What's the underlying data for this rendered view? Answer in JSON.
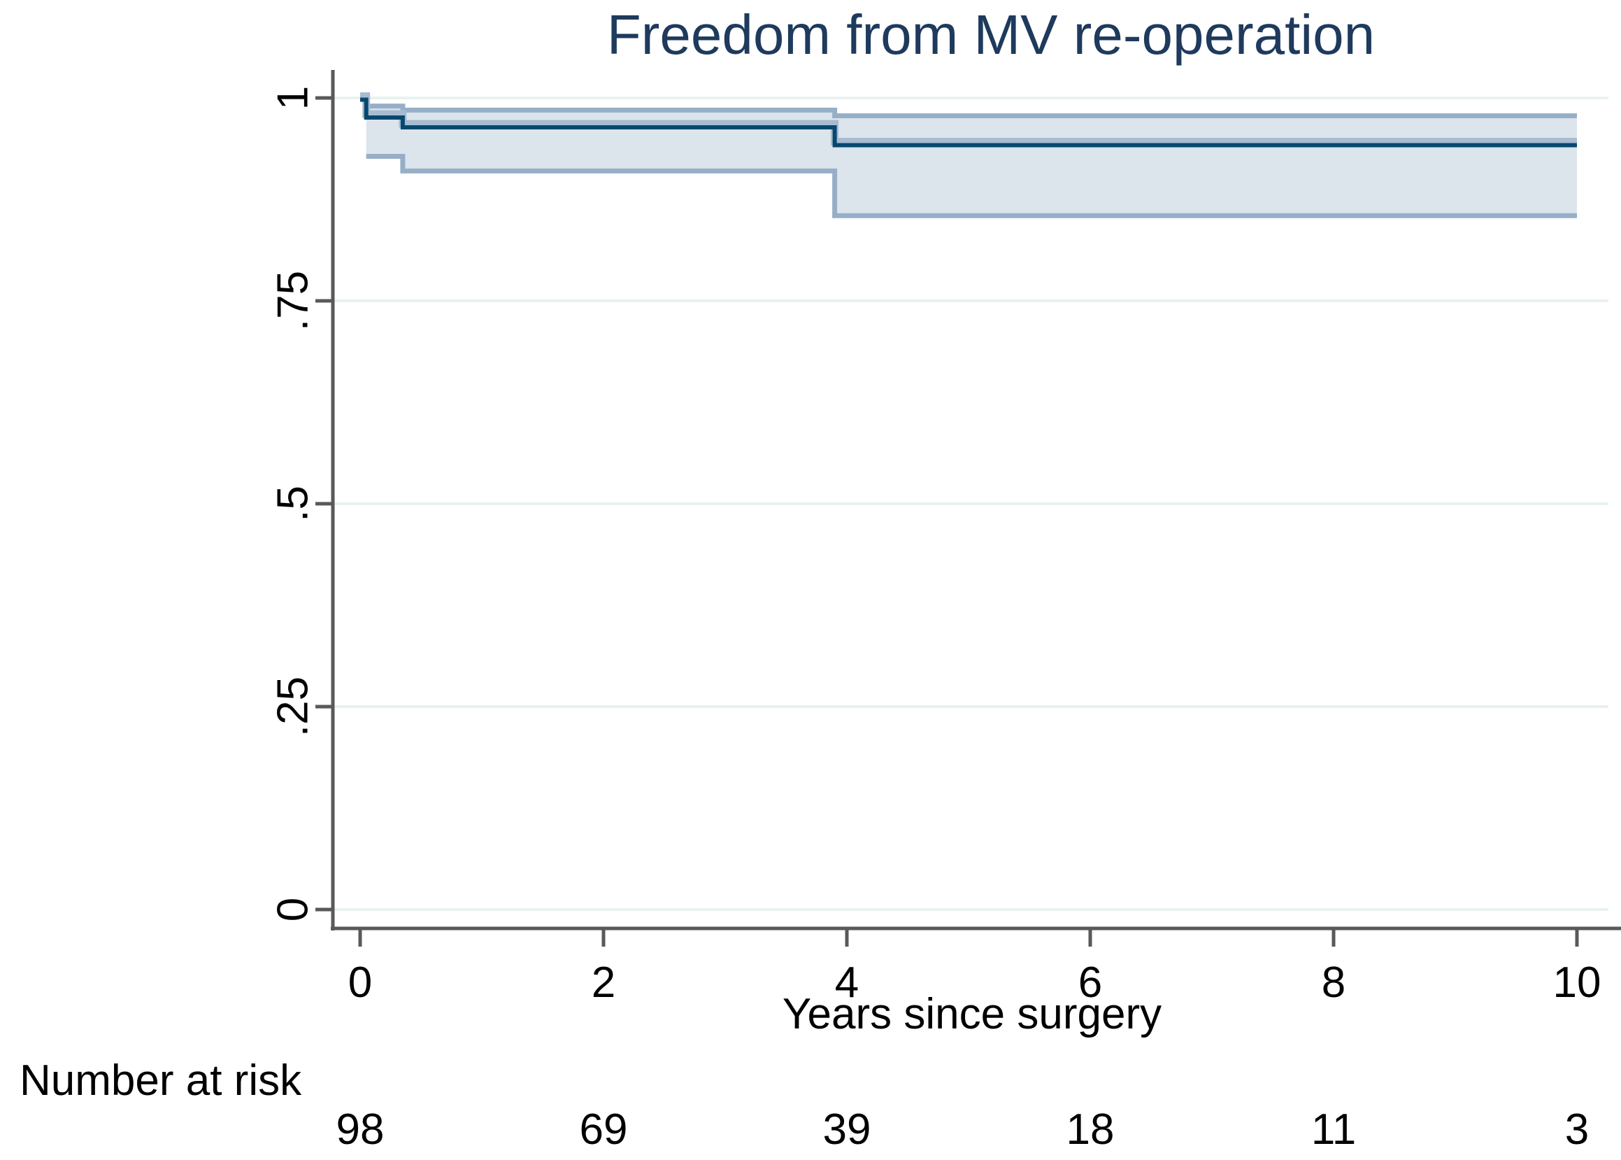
{
  "chart_data": {
    "type": "line",
    "subtype": "kaplan-meier-step-with-ci-band",
    "title": "Freedom from MV re-operation",
    "xlabel": "Years since surgery",
    "ylabel": "",
    "xlim": [
      0,
      10
    ],
    "ylim": [
      0,
      1
    ],
    "xticks": [
      0,
      2,
      4,
      6,
      8,
      10
    ],
    "ytick_values": [
      1,
      0.75,
      0.5,
      0.25,
      0
    ],
    "ytick_labels": [
      "1",
      ".75",
      ".5",
      ".25",
      "0"
    ],
    "grid": "horizontal very light gridlines at each y tick",
    "legend": "none",
    "series": [
      {
        "name": "KM survival estimate",
        "style": "step",
        "points": [
          [
            0,
            1.0
          ],
          [
            0.05,
            0.978
          ],
          [
            0.35,
            0.966
          ],
          [
            3.9,
            0.944
          ],
          [
            10,
            0.944
          ]
        ]
      },
      {
        "name": "95% CI upper",
        "style": "step",
        "points": [
          [
            0.05,
            0.99
          ],
          [
            0.35,
            0.985
          ],
          [
            3.9,
            0.978
          ],
          [
            10,
            0.978
          ]
        ]
      },
      {
        "name": "95% CI lower",
        "style": "step",
        "points": [
          [
            0.05,
            0.928
          ],
          [
            0.35,
            0.91
          ],
          [
            3.9,
            0.855
          ],
          [
            10,
            0.855
          ]
        ]
      }
    ],
    "risk_table": {
      "label": "Number at risk",
      "times": [
        0,
        2,
        4,
        6,
        8,
        10
      ],
      "counts": [
        98,
        69,
        39,
        18,
        11,
        3
      ]
    },
    "colors": {
      "line": "#07486f",
      "line_shadow": "#a7bcd1",
      "ci_edge": "#96afc7",
      "ci_fill": "#dce4ec",
      "grid": "#e8f2f0",
      "title": "#1e3a5c",
      "axis": "#595959",
      "text": "#000000"
    }
  }
}
